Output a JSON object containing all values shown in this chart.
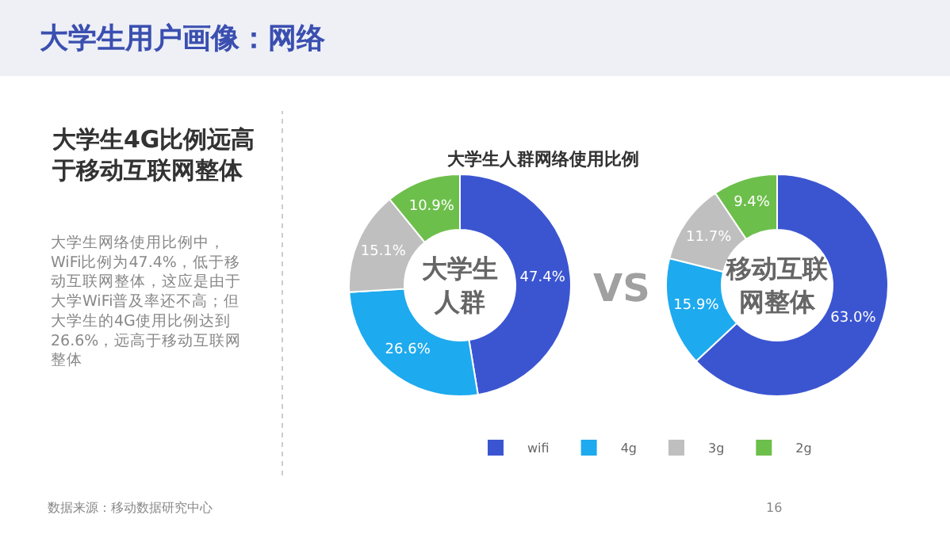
{
  "chart_data": [
    {
      "type": "donut",
      "title": "大学生人群网络使用比例",
      "categories": [
        "wifi",
        "4g",
        "3g",
        "2g"
      ],
      "values": [
        47.4,
        26.6,
        15.1,
        10.9
      ],
      "colors": [
        "#3b55d1",
        "#1eaaee",
        "#bfbfbf",
        "#6dbf4b"
      ],
      "value_labels": [
        "47.4%",
        "26.6%",
        "15.1%",
        "10.9%"
      ],
      "legend": "bottom",
      "annotations": [
        "大学生用户画像：网络",
        "大学生4G比例远高于移动互联网整体",
        "大学生网络使用比例中，WiFi比例为47.4%，低于移动互联网整体，这应是由于大学WiFi普及率还不高；但大学生的4G使用比例达到26.6%，远高于移动互联网整体",
        "大学生人群",
        "VS",
        "数据来源：移动数据研究中心"
      ]
    },
    {
      "type": "donut",
      "categories": [
        null,
        null,
        null,
        null
      ],
      "values": [
        63.0,
        15.9,
        11.7,
        9.4
      ],
      "colors": [
        "#3b55d1",
        "#1eaaee",
        "#bfbfbf",
        "#6dbf4b"
      ],
      "value_labels": [
        "63.0%",
        "15.9%",
        "11.7%",
        "9.4%"
      ],
      "annotations": [
        "移动互联网整体",
        "16"
      ]
    }
  ]
}
